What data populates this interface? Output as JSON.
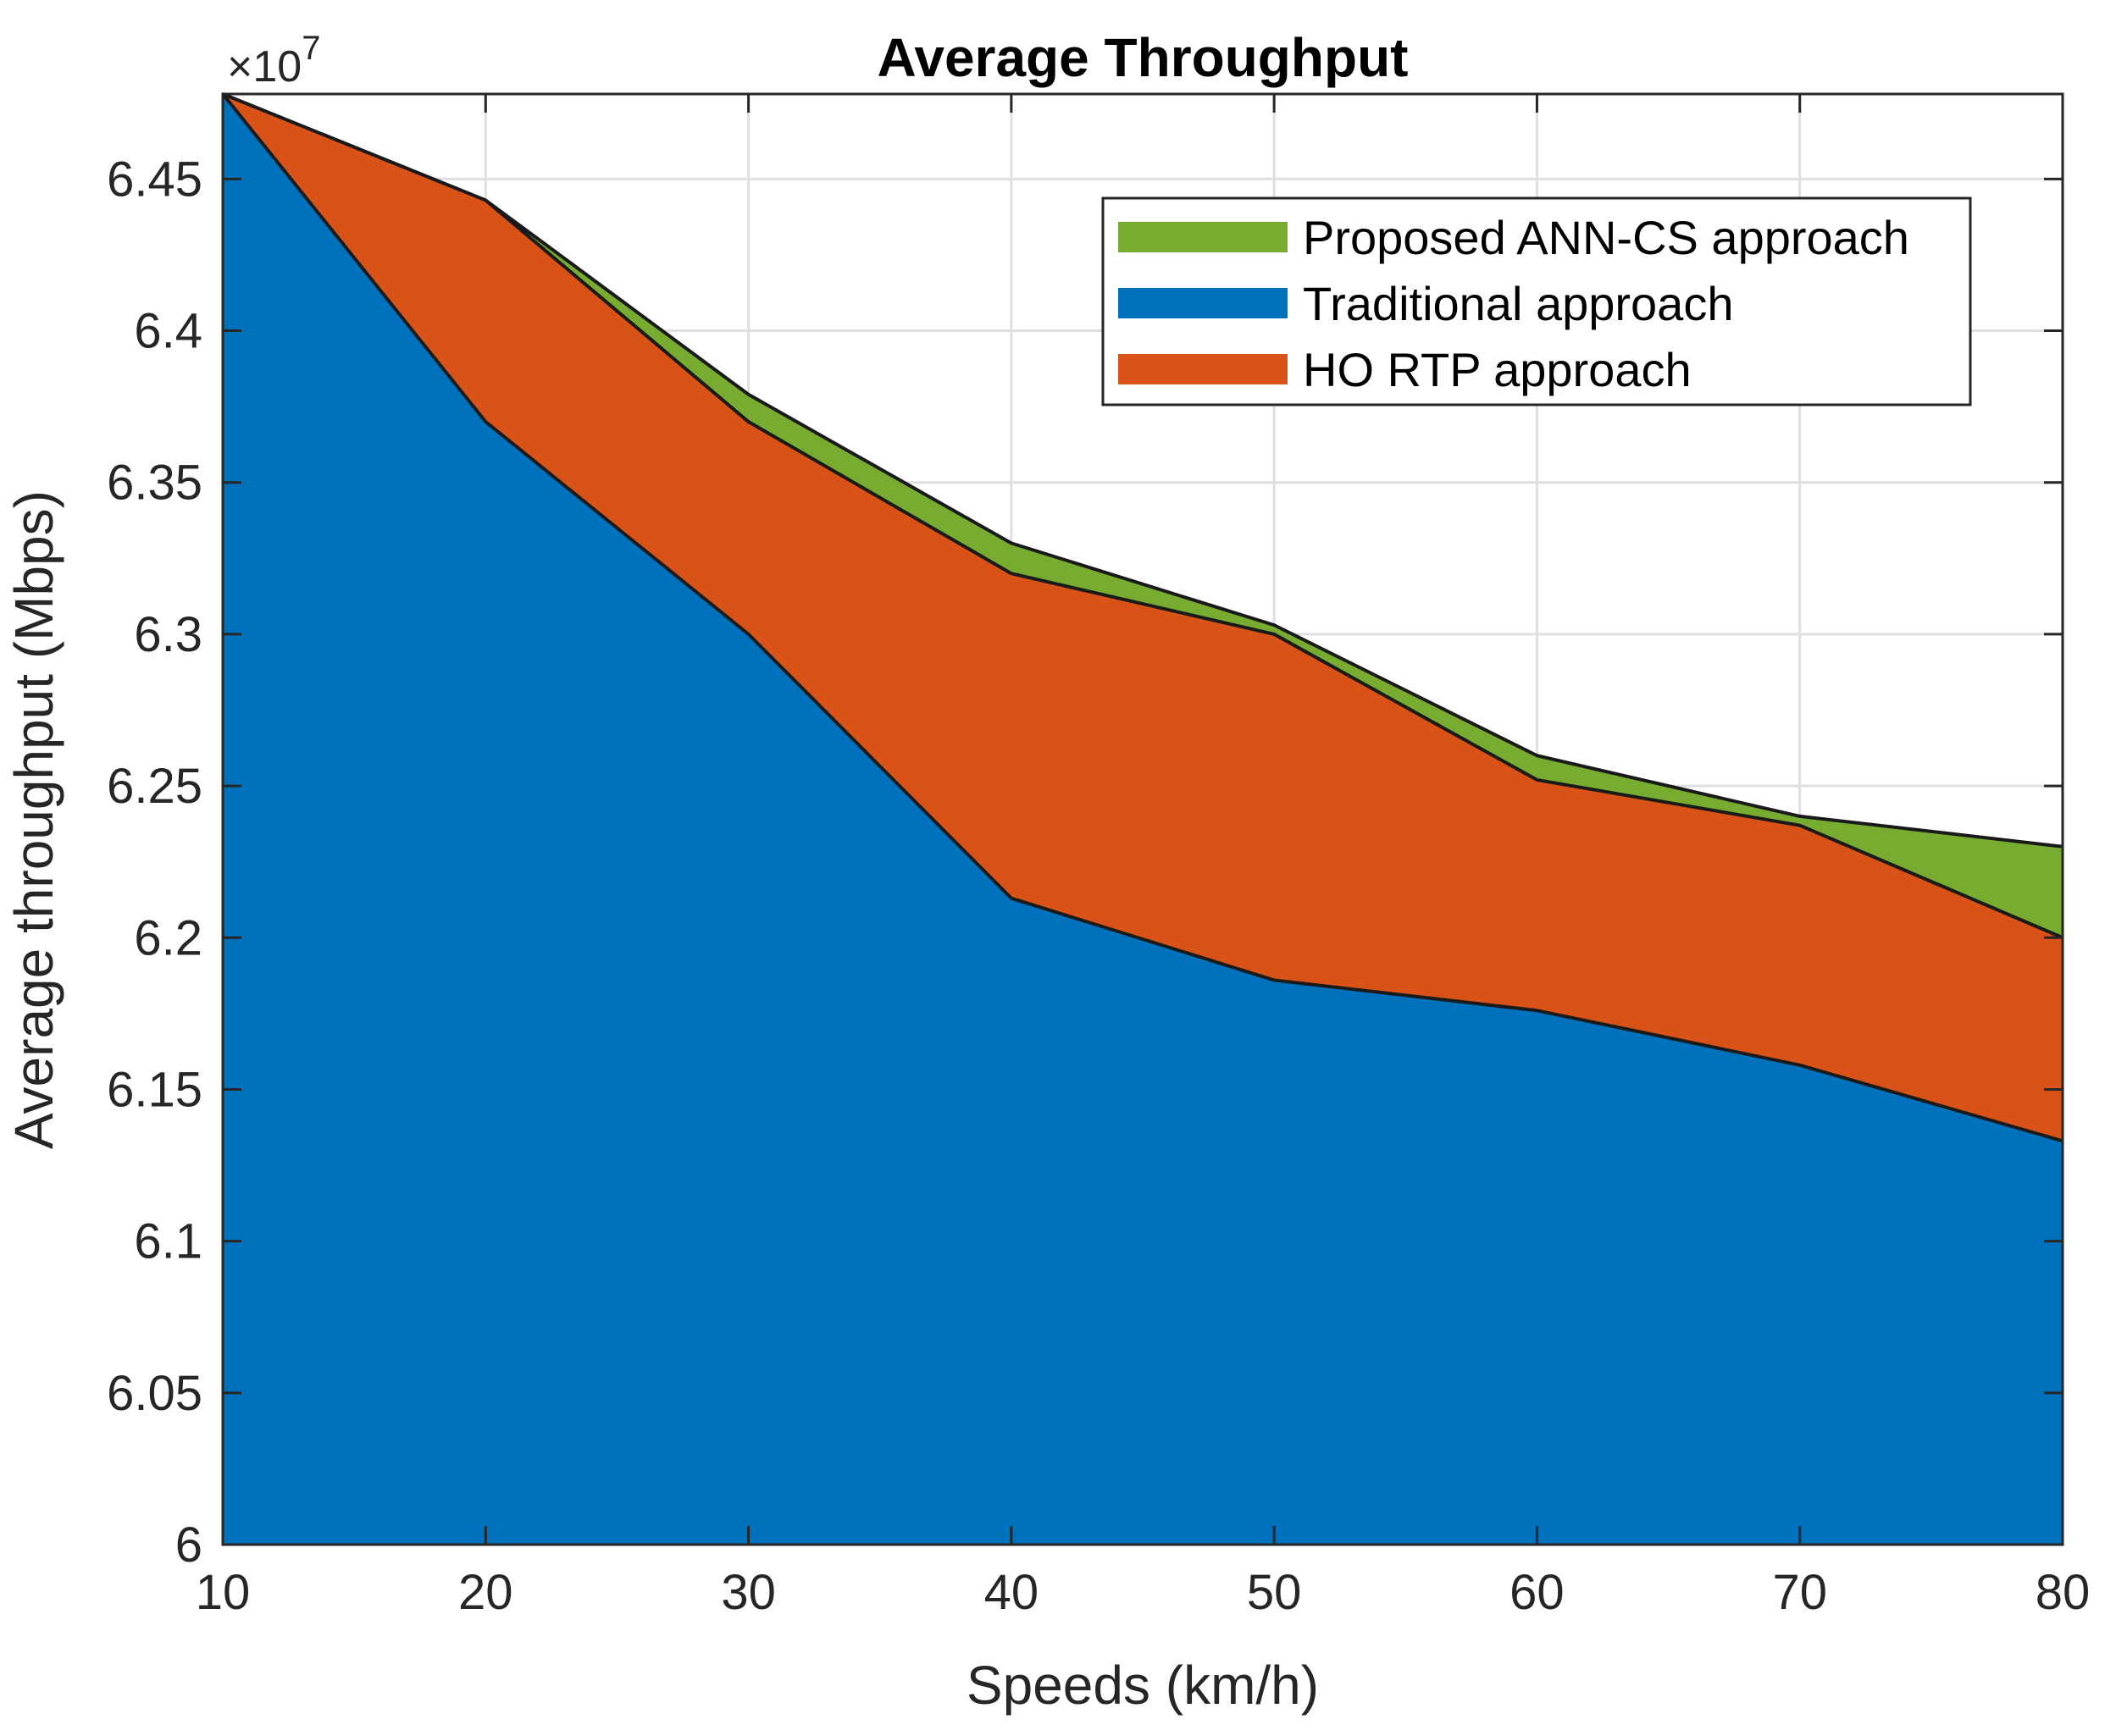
{
  "chart_data": {
    "type": "area",
    "title": "Average Throughput",
    "xlabel": "Speeds (km/h)",
    "ylabel": "Average throughput (Mbps)",
    "y_exponent": {
      "base": "×10",
      "power": "7"
    },
    "x": [
      10,
      20,
      30,
      40,
      50,
      60,
      70,
      80
    ],
    "xlim": [
      10,
      80
    ],
    "ylim": [
      60000000,
      64780000
    ],
    "x_ticks": [
      10,
      20,
      30,
      40,
      50,
      60,
      70,
      80
    ],
    "x_tick_labels": [
      "10",
      "20",
      "30",
      "40",
      "50",
      "60",
      "70",
      "80"
    ],
    "y_ticks": [
      60000000,
      60500000,
      61000000,
      61500000,
      62000000,
      62500000,
      63000000,
      63500000,
      64000000,
      64500000
    ],
    "y_tick_labels": [
      "6",
      "6.05",
      "6.1",
      "6.15",
      "6.2",
      "6.25",
      "6.3",
      "6.35",
      "6.4",
      "6.45"
    ],
    "grid": true,
    "legend_position": "top-right",
    "series": [
      {
        "name": "Proposed ANN-CS approach",
        "color": "#77AC30",
        "values": [
          64780000,
          64430000,
          63790000,
          63300000,
          63030000,
          62600000,
          62400000,
          62300000
        ]
      },
      {
        "name": "HO RTP approach",
        "color": "#D95319",
        "values": [
          64780000,
          64430000,
          63700000,
          63200000,
          63000000,
          62520000,
          62370000,
          62000000
        ]
      },
      {
        "name": "Traditional approach",
        "color": "#0072BD",
        "values": [
          64780000,
          63700000,
          63000000,
          62130000,
          61860000,
          61760000,
          61580000,
          61330000
        ]
      }
    ],
    "legend_order": [
      "Proposed ANN-CS approach",
      "Traditional approach",
      "HO RTP approach"
    ]
  }
}
